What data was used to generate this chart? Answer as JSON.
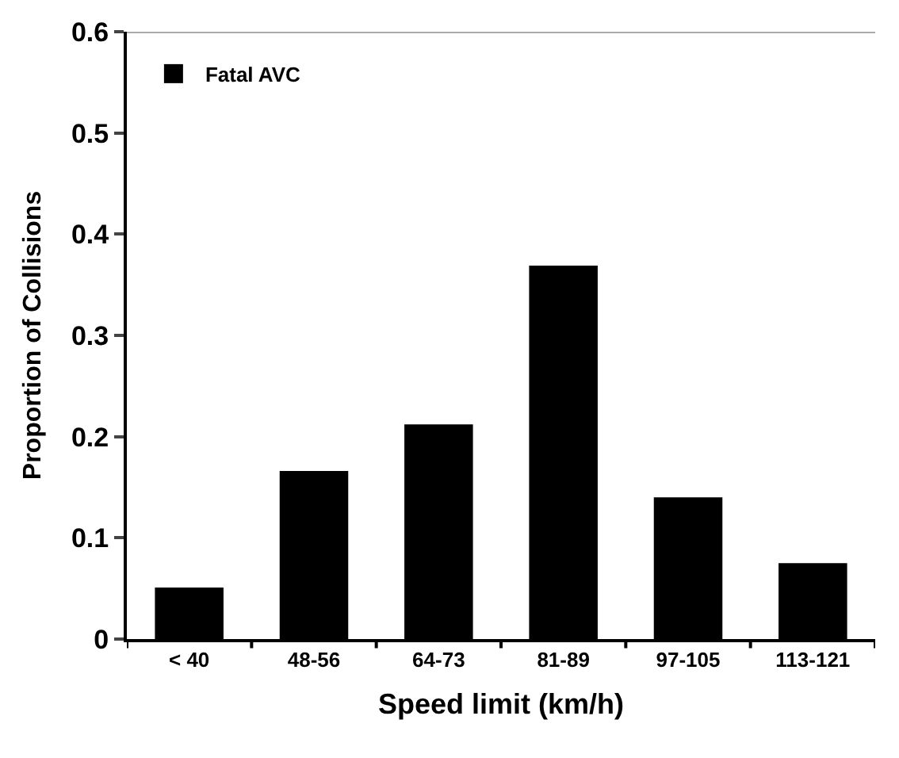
{
  "chart_data": {
    "type": "bar",
    "xlabel": "Speed limit (km/h)",
    "ylabel": "Proportion of Collisions",
    "categories": [
      "< 40",
      "48-56",
      "64-73",
      "81-89",
      "97-105",
      "113-121"
    ],
    "series": [
      {
        "name": "Fatal AVC",
        "color": "#000000",
        "values": [
          0.051,
          0.166,
          0.212,
          0.369,
          0.14,
          0.075
        ]
      }
    ],
    "ylim": [
      0,
      0.6
    ],
    "yticks": [
      0,
      0.1,
      0.2,
      0.3,
      0.4,
      0.5,
      0.6
    ],
    "legend": "top left"
  }
}
